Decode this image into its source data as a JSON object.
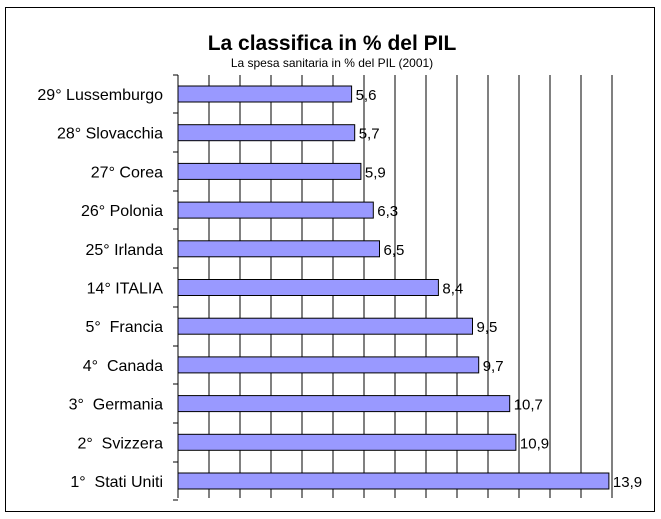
{
  "chart_data": {
    "type": "bar",
    "orientation": "horizontal",
    "title": "La classifica in % del PIL",
    "subtitle": "La spesa sanitaria in % del PIL (2001)",
    "categories": [
      "29° Lussemburgo",
      "28° Slovacchia",
      "27° Corea",
      "26° Polonia",
      "25° Irlanda",
      "14° ITALIA",
      "5°  Francia",
      "4°  Canada",
      "3°  Germania",
      "2°  Svizzera",
      "1°  Stati Uniti"
    ],
    "values": [
      5.6,
      5.7,
      5.9,
      6.3,
      6.5,
      8.4,
      9.5,
      9.7,
      10.7,
      10.9,
      13.9
    ],
    "value_labels": [
      "5,6",
      "5,7",
      "5,9",
      "6,3",
      "6,5",
      "8,4",
      "9,5",
      "9,7",
      "10,7",
      "10,9",
      "13,9"
    ],
    "xlim": [
      0,
      14
    ],
    "grid": true,
    "bar_color": "#9999ff",
    "bar_edge_color": "#000000"
  }
}
